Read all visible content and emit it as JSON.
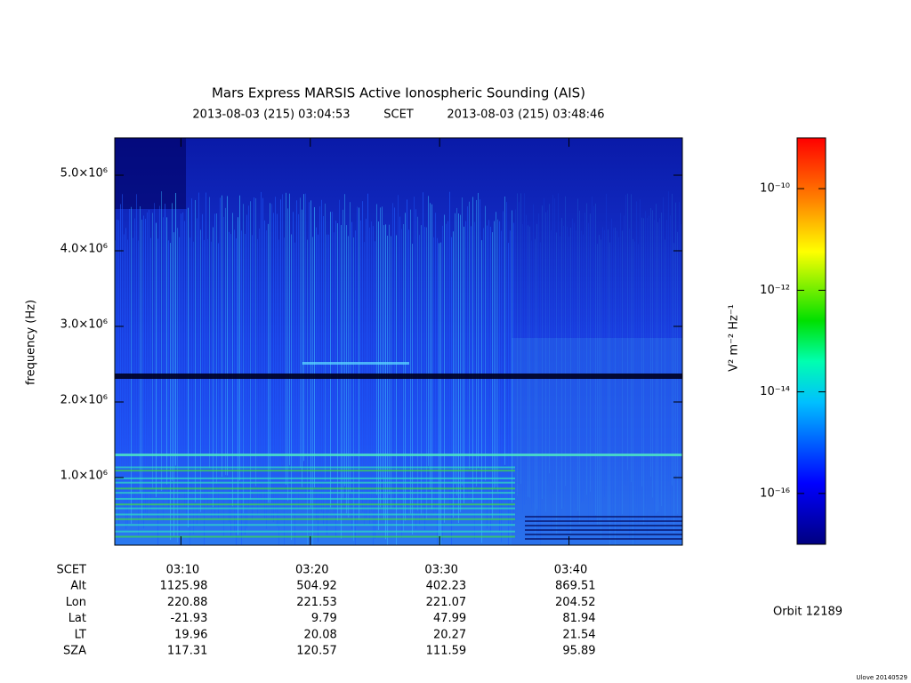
{
  "chart_data": {
    "type": "spectrogram",
    "title": "Mars Express MARSIS Active Ionospheric Sounding (AIS)",
    "time_start": "2013-08-03 (215) 03:04:53",
    "time_frame": "SCET",
    "time_end": "2013-08-03 (215) 03:48:46",
    "y_label": "frequency (Hz)",
    "ylim": [
      106000,
      5494000
    ],
    "yticks": [
      {
        "value": 1000000,
        "label": "1.0×10⁶"
      },
      {
        "value": 2000000,
        "label": "2.0×10⁶"
      },
      {
        "value": 3000000,
        "label": "3.0×10⁶"
      },
      {
        "value": 4000000,
        "label": "4.0×10⁶"
      },
      {
        "value": 5000000,
        "label": "5.0×10⁶"
      }
    ],
    "xlim": [
      "03:04:53",
      "03:48:46"
    ],
    "xticks": [
      "03:10",
      "03:20",
      "03:30",
      "03:40"
    ],
    "ephemeris": {
      "time_label": "SCET",
      "rows": [
        {
          "label": "Alt",
          "values": [
            1125.98,
            504.92,
            402.23,
            869.51
          ]
        },
        {
          "label": "Lon",
          "values": [
            220.88,
            221.53,
            221.07,
            204.52
          ]
        },
        {
          "label": "Lat",
          "values": [
            -21.93,
            9.79,
            47.99,
            81.94
          ]
        },
        {
          "label": "LT",
          "values": [
            19.96,
            20.08,
            20.27,
            21.54
          ]
        },
        {
          "label": "SZA",
          "values": [
            117.31,
            120.57,
            111.59,
            95.89
          ]
        }
      ]
    },
    "colorbar_label": "V² m⁻² Hz⁻¹",
    "clim": [
      1e-17,
      1e-09
    ],
    "clog": true,
    "cticks": [
      {
        "value": 1e-10,
        "label": "10⁻¹⁰"
      },
      {
        "value": 1e-12,
        "label": "10⁻¹²"
      },
      {
        "value": 1e-14,
        "label": "10⁻¹⁴"
      },
      {
        "value": 1e-16,
        "label": "10⁻¹⁶"
      }
    ],
    "orbit": "Orbit 12189",
    "signature": "Ulove 20140529"
  }
}
